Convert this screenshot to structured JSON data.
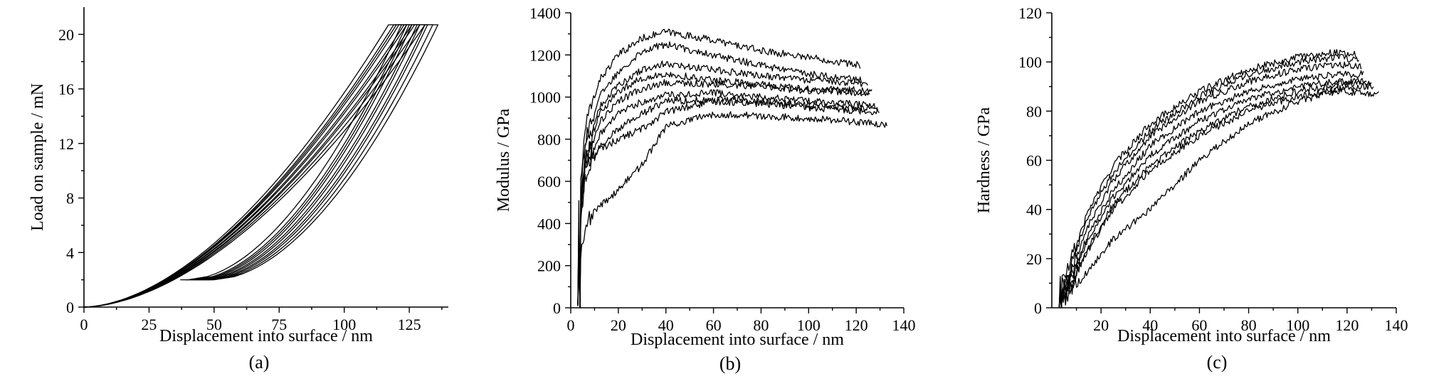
{
  "chart_data": [
    {
      "type": "line",
      "caption": "(a)",
      "xlabel": "Displacement into surface / nm",
      "ylabel": "Load on sample / mN",
      "xlim": [
        0,
        140
      ],
      "ylim": [
        0,
        22
      ],
      "xticks": [
        "0",
        "25",
        "50",
        "75",
        "100",
        "125"
      ],
      "yticks": [
        "0",
        "4",
        "8",
        "12",
        "16",
        "20"
      ],
      "curve_shape": "load-unload",
      "hold_load": 2.0,
      "peak_load": 20.7,
      "series": [
        {
          "x": [
            0,
            40,
            117,
            122
          ],
          "y": [
            0,
            2.0,
            20.7,
            20.7
          ]
        },
        {
          "x": [
            0,
            42,
            119,
            124
          ],
          "y": [
            0,
            2.0,
            20.7,
            20.7
          ]
        },
        {
          "x": [
            0,
            43,
            120,
            125
          ],
          "y": [
            0,
            2.0,
            20.7,
            20.7
          ]
        },
        {
          "x": [
            0,
            44,
            121,
            126
          ],
          "y": [
            0,
            2.0,
            20.7,
            20.7
          ]
        },
        {
          "x": [
            0,
            45,
            123,
            128
          ],
          "y": [
            0,
            2.0,
            20.7,
            20.7
          ]
        },
        {
          "x": [
            0,
            46,
            124,
            129
          ],
          "y": [
            0,
            2.0,
            20.7,
            20.7
          ]
        },
        {
          "x": [
            0,
            47,
            126,
            131
          ],
          "y": [
            0,
            2.0,
            20.7,
            20.7
          ]
        },
        {
          "x": [
            0,
            48,
            127,
            132
          ],
          "y": [
            0,
            2.0,
            20.7,
            20.7
          ]
        },
        {
          "x": [
            0,
            49,
            129,
            134
          ],
          "y": [
            0,
            2.0,
            20.7,
            20.7
          ]
        },
        {
          "x": [
            0,
            50,
            131,
            136
          ],
          "y": [
            0,
            2.0,
            20.7,
            20.7
          ]
        }
      ]
    },
    {
      "type": "line",
      "caption": "(b)",
      "xlabel": "Displacement into surface / nm",
      "ylabel": "Modulus / GPa",
      "xlim": [
        0,
        140
      ],
      "ylim": [
        0,
        1400
      ],
      "xticks": [
        "0",
        "20",
        "40",
        "60",
        "80",
        "100",
        "120",
        "140"
      ],
      "yticks": [
        "0",
        "200",
        "400",
        "600",
        "800",
        "1000",
        "1200",
        "1400"
      ],
      "curve_shape": "noisy",
      "series": [
        {
          "x": [
            3,
            6,
            12,
            20,
            30,
            40,
            60,
            80,
            100,
            122
          ],
          "y": [
            400,
            850,
            1080,
            1200,
            1280,
            1310,
            1270,
            1220,
            1190,
            1150
          ]
        },
        {
          "x": [
            3,
            6,
            12,
            20,
            30,
            40,
            60,
            80,
            100,
            123
          ],
          "y": [
            350,
            800,
            1000,
            1120,
            1220,
            1250,
            1200,
            1150,
            1110,
            1080
          ]
        },
        {
          "x": [
            3,
            6,
            12,
            20,
            30,
            40,
            60,
            80,
            100,
            125
          ],
          "y": [
            300,
            750,
            950,
            1060,
            1130,
            1160,
            1130,
            1100,
            1080,
            1060
          ]
        },
        {
          "x": [
            3,
            6,
            12,
            20,
            30,
            40,
            60,
            80,
            100,
            126
          ],
          "y": [
            280,
            700,
            920,
            1030,
            1090,
            1110,
            1080,
            1060,
            1040,
            1030
          ]
        },
        {
          "x": [
            3,
            6,
            12,
            20,
            30,
            40,
            60,
            80,
            100,
            127
          ],
          "y": [
            300,
            700,
            880,
            980,
            1040,
            1070,
            1060,
            1050,
            1030,
            1020
          ]
        },
        {
          "x": [
            3,
            6,
            12,
            20,
            30,
            40,
            60,
            80,
            100,
            128
          ],
          "y": [
            250,
            650,
            820,
            920,
            980,
            1010,
            1020,
            1000,
            980,
            960
          ]
        },
        {
          "x": [
            3,
            6,
            12,
            20,
            30,
            40,
            60,
            80,
            100,
            129
          ],
          "y": [
            220,
            620,
            760,
            850,
            920,
            980,
            990,
            980,
            960,
            940
          ]
        },
        {
          "x": [
            3,
            6,
            12,
            20,
            30,
            40,
            60,
            80,
            100,
            130
          ],
          "y": [
            250,
            680,
            750,
            800,
            850,
            930,
            980,
            970,
            950,
            930
          ]
        },
        {
          "x": [
            3,
            6,
            12,
            20,
            30,
            40,
            60,
            80,
            100,
            133
          ],
          "y": [
            150,
            400,
            480,
            560,
            680,
            860,
            920,
            910,
            900,
            870
          ]
        }
      ]
    },
    {
      "type": "line",
      "caption": "(c)",
      "xlabel": "Displacement into surface / nm",
      "ylabel": "Hardness / GPa",
      "xlim": [
        0,
        140
      ],
      "ylim": [
        0,
        120
      ],
      "xticks": [
        "20",
        "40",
        "60",
        "80",
        "100",
        "120",
        "140"
      ],
      "yticks": [
        "0",
        "20",
        "40",
        "60",
        "80",
        "100",
        "120"
      ],
      "curve_shape": "noisy",
      "series": [
        {
          "x": [
            3,
            6,
            15,
            25,
            40,
            60,
            80,
            100,
            115,
            124
          ],
          "y": [
            10,
            14,
            40,
            58,
            75,
            88,
            97,
            102,
            104,
            103
          ]
        },
        {
          "x": [
            3,
            6,
            15,
            25,
            40,
            60,
            80,
            100,
            115,
            125
          ],
          "y": [
            8,
            12,
            38,
            55,
            72,
            86,
            95,
            100,
            102,
            101
          ]
        },
        {
          "x": [
            3,
            6,
            15,
            25,
            40,
            60,
            80,
            100,
            115,
            126
          ],
          "y": [
            6,
            10,
            34,
            52,
            70,
            84,
            92,
            97,
            99,
            98
          ]
        },
        {
          "x": [
            3,
            6,
            15,
            25,
            40,
            60,
            80,
            100,
            115,
            127
          ],
          "y": [
            6,
            9,
            30,
            48,
            66,
            80,
            88,
            93,
            95,
            95
          ]
        },
        {
          "x": [
            3,
            6,
            15,
            25,
            40,
            60,
            80,
            100,
            115,
            128
          ],
          "y": [
            5,
            8,
            28,
            45,
            62,
            76,
            85,
            90,
            92,
            92
          ]
        },
        {
          "x": [
            3,
            6,
            15,
            25,
            40,
            60,
            80,
            100,
            115,
            130
          ],
          "y": [
            4,
            7,
            25,
            42,
            58,
            72,
            82,
            88,
            91,
            91
          ]
        },
        {
          "x": [
            3,
            6,
            15,
            25,
            40,
            60,
            80,
            100,
            115,
            131
          ],
          "y": [
            4,
            6,
            24,
            40,
            56,
            70,
            80,
            86,
            89,
            90
          ]
        },
        {
          "x": [
            3,
            6,
            15,
            25,
            40,
            60,
            80,
            100,
            115,
            133
          ],
          "y": [
            3,
            5,
            15,
            28,
            40,
            60,
            75,
            84,
            88,
            87
          ]
        }
      ]
    }
  ]
}
